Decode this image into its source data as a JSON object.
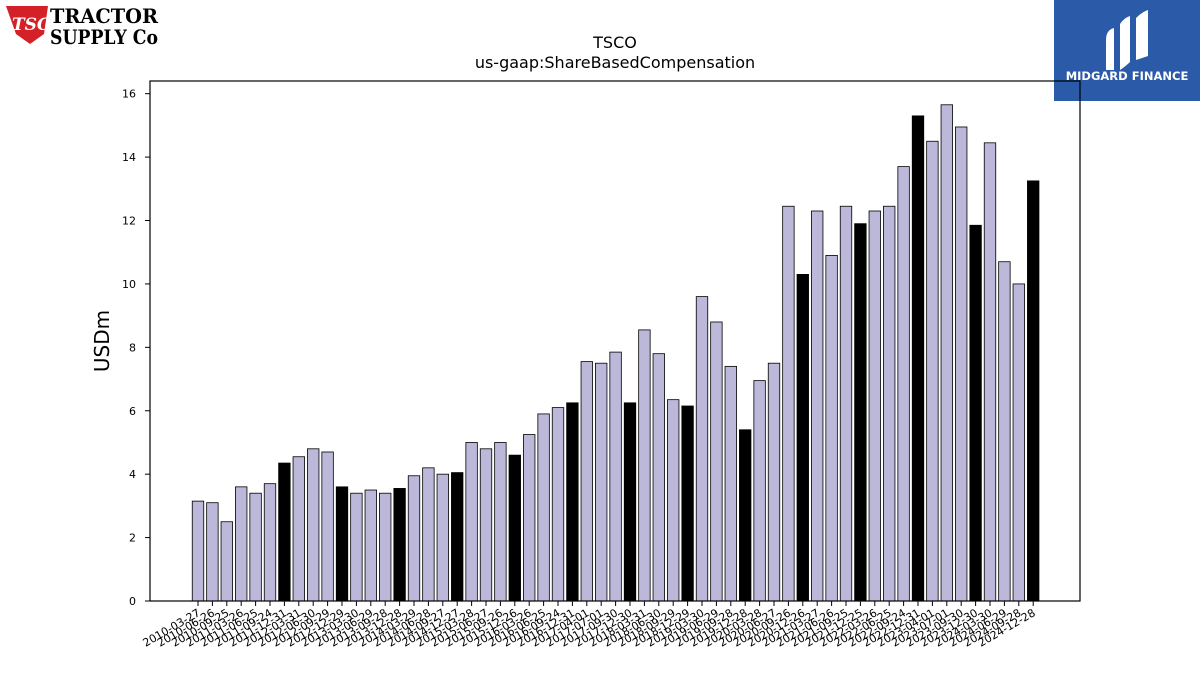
{
  "logos": {
    "left_line1": "TRACTOR",
    "left_line2": "SUPPLY Co",
    "left_badge": "TSC",
    "right_text": "MIDGARD FINANCE"
  },
  "chart_data": {
    "type": "bar",
    "title": "TSCO",
    "subtitle": "us-gaap:ShareBasedCompensation",
    "xlabel": "",
    "ylabel": "USDm",
    "ylim": [
      0,
      16.4
    ],
    "yticks": [
      0,
      2,
      4,
      6,
      8,
      10,
      12,
      14,
      16
    ],
    "grid": false,
    "colors": {
      "quarter": "#bcb8d9",
      "annual": "#000000",
      "edge": "#000000"
    },
    "categories": [
      "2010-03-27",
      "2010-06-26",
      "2010-09-25",
      "2011-03-26",
      "2011-06-25",
      "2011-09-24",
      "2011-12-31",
      "2012-03-31",
      "2012-06-30",
      "2012-09-29",
      "2012-12-29",
      "2013-03-30",
      "2013-06-29",
      "2013-09-28",
      "2013-12-28",
      "2014-03-29",
      "2014-06-28",
      "2014-09-27",
      "2014-12-27",
      "2015-03-28",
      "2015-06-27",
      "2015-09-26",
      "2015-12-26",
      "2016-03-26",
      "2016-06-25",
      "2016-09-24",
      "2016-12-31",
      "2017-04-01",
      "2017-07-01",
      "2017-09-30",
      "2017-12-30",
      "2018-03-31",
      "2018-06-30",
      "2018-09-29",
      "2018-12-29",
      "2019-03-30",
      "2019-06-29",
      "2019-09-28",
      "2019-12-28",
      "2020-03-28",
      "2020-06-27",
      "2020-09-26",
      "2020-12-26",
      "2021-03-27",
      "2021-06-26",
      "2021-09-25",
      "2021-12-25",
      "2022-03-26",
      "2022-06-25",
      "2022-09-24",
      "2022-12-31",
      "2023-04-01",
      "2023-07-01",
      "2023-09-30",
      "2023-12-30",
      "2024-03-30",
      "2024-06-29",
      "2024-09-28",
      "2024-12-28"
    ],
    "values": [
      3.15,
      3.1,
      2.5,
      3.6,
      3.4,
      3.7,
      4.35,
      4.55,
      4.8,
      4.7,
      3.6,
      3.4,
      3.5,
      3.4,
      3.55,
      3.95,
      4.2,
      4.0,
      4.05,
      5.0,
      4.8,
      5.0,
      4.6,
      5.25,
      5.9,
      6.1,
      6.25,
      7.55,
      7.5,
      7.85,
      6.25,
      8.55,
      7.8,
      6.35,
      6.15,
      9.6,
      8.8,
      7.4,
      5.4,
      6.95,
      7.5,
      12.45,
      10.3,
      12.3,
      10.9,
      12.45,
      11.9,
      12.3,
      12.45,
      13.7,
      15.3,
      14.5,
      15.65,
      14.95,
      11.85,
      14.45,
      10.7,
      10.0,
      13.25
    ],
    "annual": [
      false,
      false,
      false,
      false,
      false,
      false,
      true,
      false,
      false,
      false,
      true,
      false,
      false,
      false,
      true,
      false,
      false,
      false,
      true,
      false,
      false,
      false,
      true,
      false,
      false,
      false,
      true,
      false,
      false,
      false,
      true,
      false,
      false,
      false,
      true,
      false,
      false,
      false,
      true,
      false,
      false,
      false,
      true,
      false,
      false,
      false,
      true,
      false,
      false,
      false,
      true,
      false,
      false,
      false,
      true,
      false,
      false,
      false,
      true
    ]
  }
}
